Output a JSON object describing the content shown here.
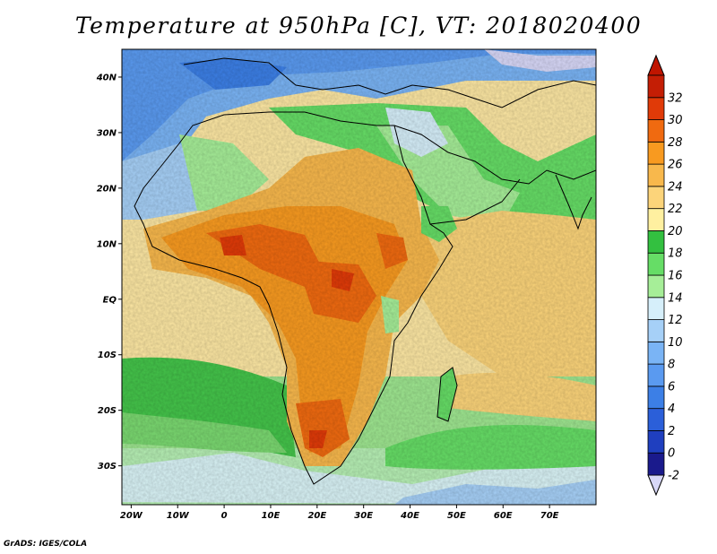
{
  "title": "Temperature at 950hPa [C], VT: 2018020400",
  "credit": "GrADS: IGES/COLA",
  "map": {
    "lon_labels": [
      "20W",
      "10W",
      "0",
      "10E",
      "20E",
      "30E",
      "40E",
      "50E",
      "60E",
      "70E"
    ],
    "lat_labels": [
      "40N",
      "30N",
      "20N",
      "10N",
      "EQ",
      "10S",
      "20S",
      "30S"
    ],
    "lon_range": [
      -22,
      80
    ],
    "lat_range": [
      -37,
      45
    ]
  },
  "colorbar": {
    "labels": [
      "-2",
      "0",
      "2",
      "4",
      "6",
      "8",
      "10",
      "12",
      "14",
      "16",
      "18",
      "20",
      "22",
      "24",
      "26",
      "28",
      "30",
      "32"
    ],
    "colors": [
      "#1a1a8c",
      "#1f3fbf",
      "#2b5fd9",
      "#3c7fe6",
      "#5a9af0",
      "#7ab4f5",
      "#a6d0f7",
      "#d6effa",
      "#a6ee98",
      "#66dd66",
      "#33c040",
      "#fff0a0",
      "#fcd47a",
      "#f8b84c",
      "#f89a20",
      "#f06a10",
      "#e03a08",
      "#c41e05"
    ],
    "low_end_color": "#d8d8f8",
    "high_end_color": "#c01500"
  }
}
